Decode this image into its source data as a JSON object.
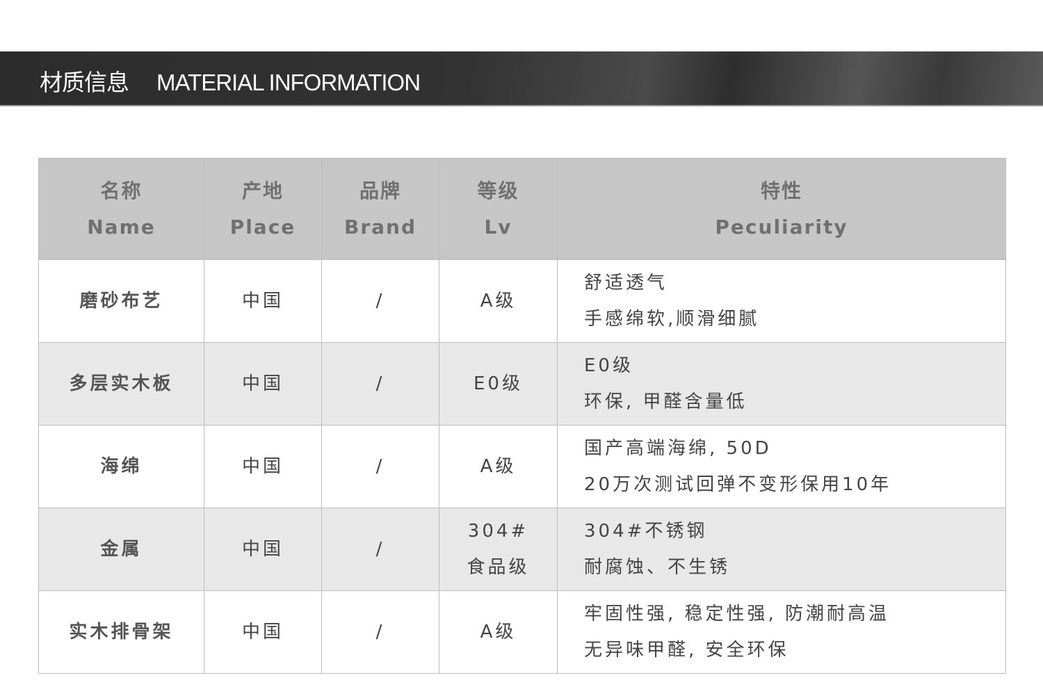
{
  "banner": {
    "title_cn": "材质信息",
    "title_en": "MATERIAL INFORMATION"
  },
  "table": {
    "headers": [
      {
        "cn": "名称",
        "en": "Name"
      },
      {
        "cn": "产地",
        "en": "Place"
      },
      {
        "cn": "品牌",
        "en": "Brand"
      },
      {
        "cn": "等级",
        "en": "Lv"
      },
      {
        "cn": "特性",
        "en": "Peculiarity"
      }
    ],
    "rows": [
      {
        "name": "磨砂布艺",
        "place": "中国",
        "brand": "/",
        "lv": [
          "A级"
        ],
        "feat": [
          "舒适透气",
          "手感绵软,顺滑细腻"
        ]
      },
      {
        "name": "多层实木板",
        "place": "中国",
        "brand": "/",
        "lv": [
          "E0级"
        ],
        "feat": [
          "E0级",
          "环保, 甲醛含量低"
        ]
      },
      {
        "name": "海绵",
        "place": "中国",
        "brand": "/",
        "lv": [
          "A级"
        ],
        "feat": [
          "国产高端海绵, 50D",
          "20万次测试回弹不变形保用10年"
        ]
      },
      {
        "name": "金属",
        "place": "中国",
        "brand": "/",
        "lv": [
          "304#",
          "食品级"
        ],
        "feat": [
          "304#不锈钢",
          "耐腐蚀、不生锈"
        ]
      },
      {
        "name": "实木排骨架",
        "place": "中国",
        "brand": "/",
        "lv": [
          "A级"
        ],
        "feat": [
          "牢固性强, 稳定性强, 防潮耐高温",
          "无异味甲醛, 安全环保"
        ]
      }
    ]
  }
}
